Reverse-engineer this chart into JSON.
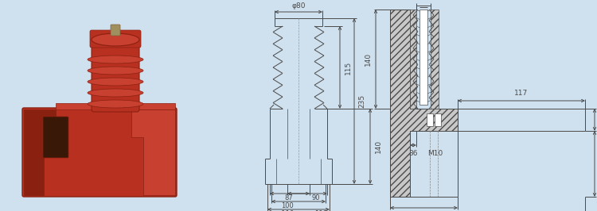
{
  "bg_color": "#cfe0ee",
  "line_color": "#4a4a4a",
  "fig_width": 7.5,
  "fig_height": 2.66,
  "dpi": 100
}
